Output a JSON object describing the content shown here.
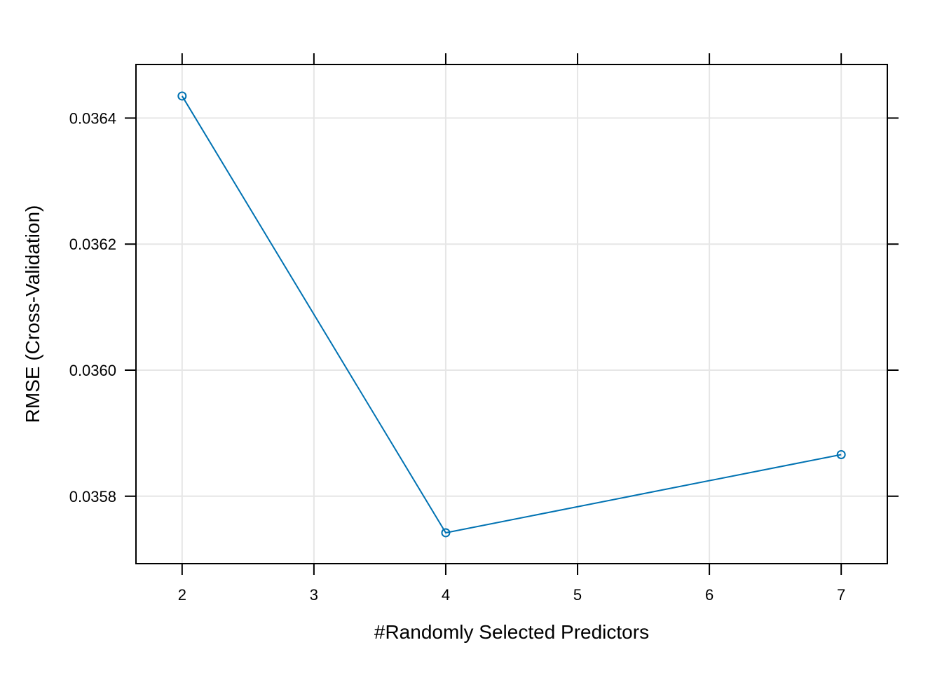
{
  "chart_data": {
    "type": "line",
    "title": "",
    "xlabel": "#Randomly Selected Predictors",
    "ylabel": "RMSE (Cross-Validation)",
    "xlim": [
      1.65,
      7.35
    ],
    "ylim": [
      0.035693,
      0.036485
    ],
    "x_ticks": [
      2,
      3,
      4,
      5,
      6,
      7
    ],
    "x_tick_labels": [
      "2",
      "3",
      "4",
      "5",
      "6",
      "7"
    ],
    "y_ticks": [
      0.0358,
      0.036,
      0.0362,
      0.0364
    ],
    "y_tick_labels": [
      "0.0358",
      "0.0360",
      "0.0362",
      "0.0364"
    ],
    "grid": true,
    "series": [
      {
        "x": [
          2,
          4,
          7
        ],
        "values": [
          0.036435,
          0.035742,
          0.035866
        ],
        "color": "#0072b2",
        "marker": "open-circle"
      }
    ]
  }
}
